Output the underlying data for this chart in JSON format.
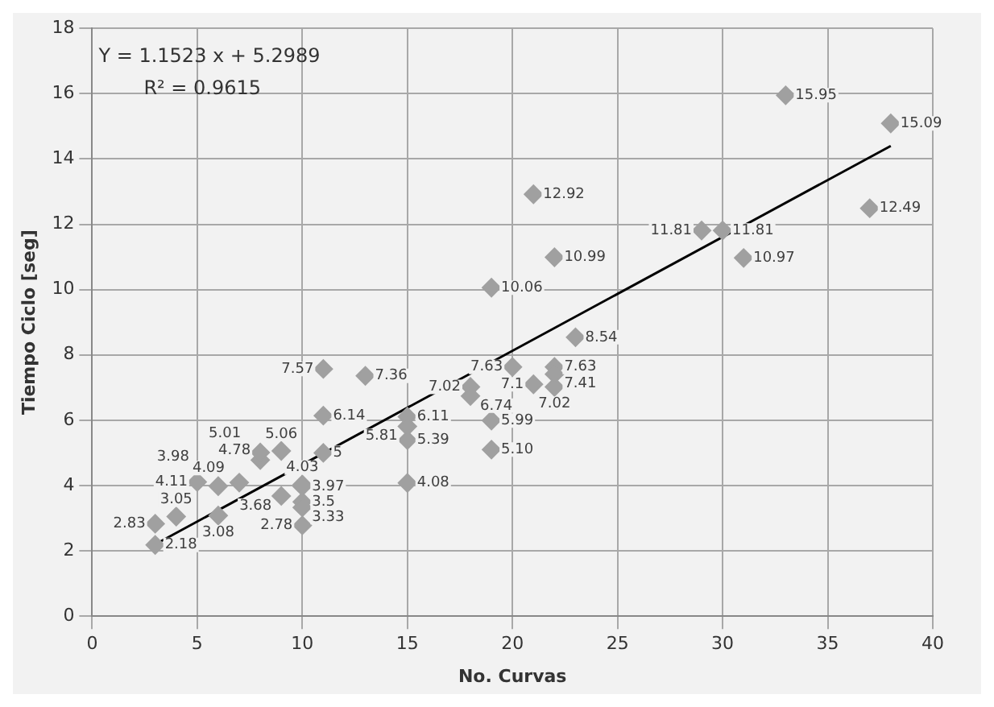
{
  "chart_data": {
    "type": "scatter",
    "xlabel": "No. Curvas",
    "ylabel": "Tiempo Ciclo [seg]",
    "annotations": [
      "Y = 1.1523 x + 5.2989",
      "R² = 0.9615"
    ],
    "xlim": [
      0,
      40
    ],
    "xticks": [
      0,
      5,
      10,
      15,
      20,
      25,
      30,
      35,
      40
    ],
    "ylim": [
      0,
      18
    ],
    "yticks": [
      0,
      2,
      4,
      6,
      8,
      10,
      12,
      14,
      16,
      18
    ],
    "grid": true,
    "legend": false,
    "marker": "diamond",
    "series": [
      {
        "type": "scatter",
        "color": "#a0a0a0",
        "x": [
          3,
          3,
          4,
          5,
          6,
          6,
          7,
          8,
          8,
          9,
          9,
          10,
          10,
          10,
          10,
          10,
          11,
          11,
          11,
          13,
          15,
          15,
          15,
          15,
          18,
          18,
          19,
          19,
          19,
          20,
          21,
          21,
          22,
          22,
          22,
          22,
          23,
          29,
          30,
          31,
          33,
          37,
          38
        ],
        "values": [
          2.18,
          2.83,
          3.05,
          4.11,
          3.08,
          3.98,
          4.09,
          4.78,
          5.01,
          5.06,
          3.68,
          3.97,
          4.03,
          3.5,
          3.33,
          2.78,
          5,
          6.14,
          7.57,
          7.36,
          6.11,
          5.81,
          5.39,
          4.08,
          7.02,
          6.74,
          10.06,
          5.99,
          5.1,
          7.63,
          7.1,
          12.92,
          10.99,
          7.63,
          7.02,
          7.41,
          8.54,
          11.81,
          11.81,
          10.97,
          15.95,
          12.49,
          15.09
        ],
        "value_labels": [
          "2.18",
          "2.83",
          "3.05",
          "4.11",
          "3.08",
          "3.98",
          "4.09",
          "4.78",
          "5.01",
          "5.06",
          "3.68",
          "3.97",
          "4.03",
          "3.5",
          "3.33",
          "2.78",
          "5",
          "6.14",
          "7.57",
          "7.36",
          "6.11",
          "5.81",
          "5.39",
          "4.08",
          "7.02",
          "6.74",
          "10.06",
          "5.99",
          "5.10",
          "7.63",
          "7.1",
          "12.92",
          "10.99",
          "7.63",
          "7.02",
          "7.41",
          "8.54",
          "11.81",
          "11.81",
          "10.97",
          "15.95",
          "12.49",
          "15.09"
        ]
      },
      {
        "type": "line",
        "color": "#000000",
        "x": [
          3,
          38
        ],
        "values": [
          2.2,
          14.4
        ],
        "marker": "none"
      }
    ]
  }
}
